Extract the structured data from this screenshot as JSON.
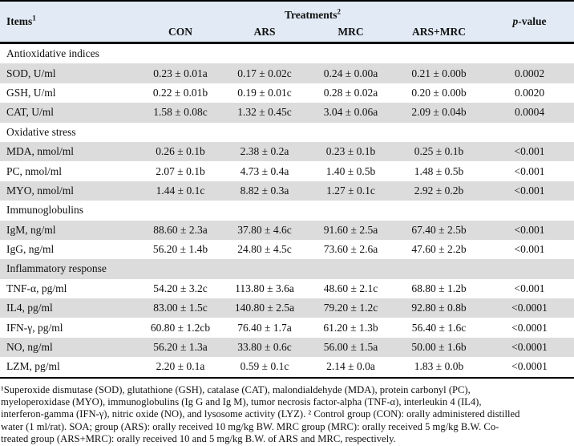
{
  "table": {
    "header": {
      "items_label": "Items",
      "items_sup": "1",
      "treatments_label": "Treatments",
      "treatments_sup": "2",
      "treatment_columns": [
        "CON",
        "ARS",
        "MRC",
        "ARS+MRC"
      ],
      "p_italic": "p",
      "p_rest": "-value"
    },
    "rows": [
      {
        "type": "section",
        "label": "Antioxidative indices"
      },
      {
        "type": "data",
        "label": "SOD, U/ml",
        "values": [
          "0.23 ± 0.01a",
          "0.17 ± 0.02c",
          "0.24 ± 0.00a",
          "0.21 ± 0.00b"
        ],
        "p": "0.0002"
      },
      {
        "type": "data",
        "label": "GSH, U/ml",
        "values": [
          "0.22 ± 0.01b",
          "0.19 ± 0.01c",
          "0.28 ± 0.02a",
          "0.20 ± 0.00b"
        ],
        "p": "0.0020"
      },
      {
        "type": "data",
        "label": "CAT, U/ml",
        "values": [
          "1.58 ± 0.08c",
          "1.32 ± 0.45c",
          "3.04 ± 0.06a",
          "2.09 ± 0.04b"
        ],
        "p": "0.0004"
      },
      {
        "type": "section",
        "label": "Oxidative stress"
      },
      {
        "type": "data",
        "label": "MDA, nmol/ml",
        "values": [
          "0.26 ± 0.1b",
          "2.38 ± 0.2a",
          "0.23 ± 0.1b",
          "0.25 ± 0.1b"
        ],
        "p": "<0.001"
      },
      {
        "type": "data",
        "label": "PC, nmol/ml",
        "values": [
          "2.07 ± 0.1b",
          "4.73 ± 0.4a",
          "1.40 ± 0.5b",
          "1.48 ± 0.5b"
        ],
        "p": "<0.001"
      },
      {
        "type": "data",
        "label": "MYO, nmol/ml",
        "values": [
          "1.44 ± 0.1c",
          "8.82 ± 0.3a",
          "1.27 ± 0.1c",
          "2.92 ± 0.2b"
        ],
        "p": "<0.001"
      },
      {
        "type": "section",
        "label": "Immunoglobulins"
      },
      {
        "type": "data",
        "label": "IgM, ng/ml",
        "values": [
          "88.60 ± 2.3a",
          "37.80 ± 4.6c",
          "91.60 ± 2.5a",
          "67.40 ± 2.5b"
        ],
        "p": "<0.001"
      },
      {
        "type": "data",
        "label": "IgG, ng/ml",
        "values": [
          "56.20 ± 1.4b",
          "24.80 ± 4.5c",
          "73.60 ± 2.6a",
          "47.60 ± 2.2b"
        ],
        "p": "<0.001"
      },
      {
        "type": "section",
        "label": "Inflammatory response"
      },
      {
        "type": "data",
        "label": "TNF-α, pg/ml",
        "values": [
          "54.20 ± 3.2c",
          "113.80 ± 3.6a",
          "48.60 ± 2.1c",
          "68.80 ± 1.2b"
        ],
        "p": "<0.001"
      },
      {
        "type": "data",
        "label": "IL4, pg/ml",
        "values": [
          "83.00 ± 1.5c",
          "140.80 ± 2.5a",
          "79.20 ± 1.2c",
          "92.80 ± 0.8b"
        ],
        "p": "<0.0001"
      },
      {
        "type": "data",
        "label": "IFN-γ, pg/ml",
        "values": [
          "60.80 ± 1.2cb",
          "76.40 ± 1.7a",
          "61.20 ± 1.3b",
          "56.40 ± 1.6c"
        ],
        "p": "<0.0001"
      },
      {
        "type": "data",
        "label": "NO, ng/ml",
        "values": [
          "56.20 ± 1.3a",
          "33.80 ± 0.6c",
          "56.00 ± 1.5a",
          "50.00 ± 1.6b"
        ],
        "p": "<0.0001"
      },
      {
        "type": "data",
        "label": "LZM, pg/ml",
        "values": [
          "2.20 ± 0.1a",
          "0.59 ± 0.1c",
          "2.14 ± 0.0a",
          "1.83 ± 0.0b"
        ],
        "p": "<0.0001"
      }
    ]
  },
  "colors": {
    "header_bg": "#e1eaf5",
    "stripe_bg": "#dcdcdc",
    "border": "#000000"
  },
  "footnote": {
    "lines": [
      "¹Superoxide dismutase (SOD), glutathione (GSH), catalase (CAT), malondialdehyde (MDA), protein carbonyl (PC),",
      "myeloperoxidase (MYO), immunoglobulins (Ig G and Ig M), tumor necrosis factor-alpha (TNF-α), interleukin 4 (IL4),",
      "interferon-gamma (IFN-γ), nitric oxide (NO), and lysosome activity (LYZ). ² Control group (CON): orally administered distilled",
      "water (1 ml/rat). SOA; group (ARS): orally received 10 mg/kg BW. MRC group (MRC): orally received 5 mg/kg B.W. Co-",
      "treated group (ARS+MRC): orally received 10 and 5 mg/kg B.W. of ARS and MRC, respectively."
    ]
  }
}
